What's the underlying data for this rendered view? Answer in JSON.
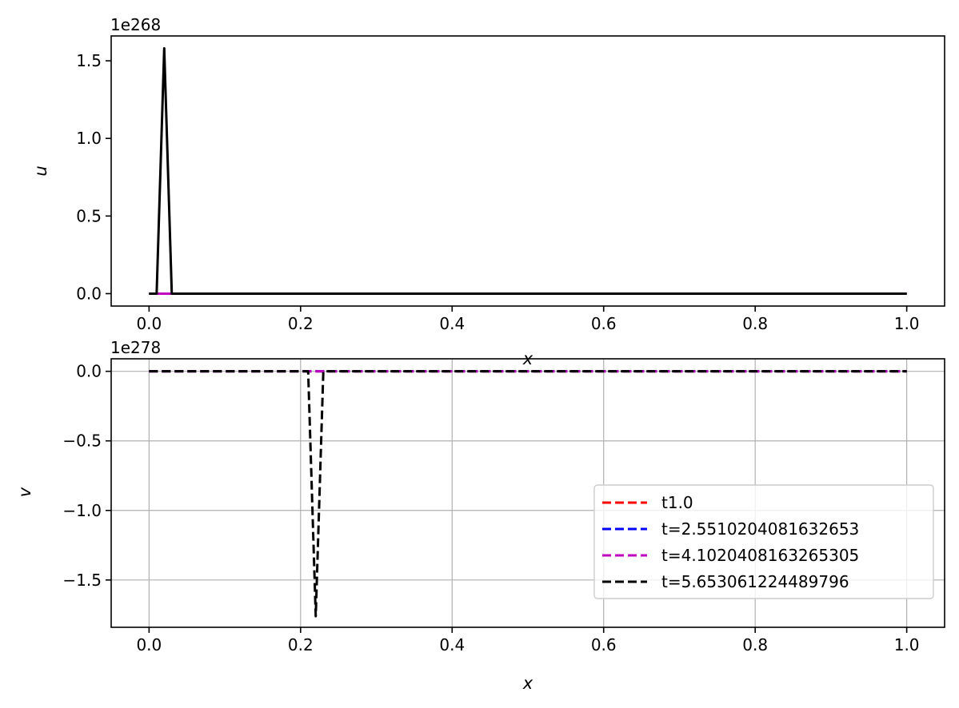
{
  "chart_data": [
    {
      "type": "line",
      "xlabel": "x",
      "ylabel": "u",
      "offset_text": "1e268",
      "xlim": [
        -0.05,
        1.05
      ],
      "ylim": [
        -0.08,
        1.66
      ],
      "grid": false,
      "x_ticks": [
        0.0,
        0.2,
        0.4,
        0.6,
        0.8,
        1.0
      ],
      "x_tick_labels": [
        "0.0",
        "0.2",
        "0.4",
        "0.6",
        "0.8",
        "1.0"
      ],
      "y_ticks": [
        0.0,
        0.5,
        1.0,
        1.5
      ],
      "y_tick_labels": [
        "0.0",
        "0.5",
        "1.0",
        "1.5"
      ],
      "series": [
        {
          "color": "#ff0000",
          "dash": "solid",
          "x": [
            0.0,
            1.0
          ],
          "y": [
            0.0,
            0.0
          ]
        },
        {
          "color": "#0000ff",
          "dash": "solid",
          "x": [
            0.0,
            0.01,
            0.02,
            0.03,
            1.0
          ],
          "y": [
            0.0,
            0.0,
            0.0,
            0.0,
            0.0
          ]
        },
        {
          "color": "#bf00bf",
          "dash": "solid",
          "x": [
            0.0,
            1.0
          ],
          "y": [
            0.0,
            0.0
          ]
        },
        {
          "color": "#000000",
          "dash": "solid",
          "x": [
            0.0,
            0.01,
            0.02,
            0.03,
            0.04,
            1.0
          ],
          "y": [
            0.0,
            0.0,
            1.58,
            0.0,
            0.0,
            0.0
          ]
        }
      ]
    },
    {
      "type": "line",
      "xlabel": "x",
      "ylabel": "v",
      "offset_text": "1e278",
      "xlim": [
        -0.05,
        1.05
      ],
      "ylim": [
        -1.84,
        0.09
      ],
      "grid": true,
      "legend_position": "lower-right",
      "x_ticks": [
        0.0,
        0.2,
        0.4,
        0.6,
        0.8,
        1.0
      ],
      "x_tick_labels": [
        "0.0",
        "0.2",
        "0.4",
        "0.6",
        "0.8",
        "1.0"
      ],
      "y_ticks": [
        0.0,
        -0.5,
        -1.0,
        -1.5
      ],
      "y_tick_labels": [
        "0.0",
        "−0.5",
        "−1.0",
        "−1.5"
      ],
      "series": [
        {
          "name": "t1.0",
          "color": "#ff0000",
          "dash": "dashed",
          "x": [
            0.0,
            1.0
          ],
          "y": [
            0.0,
            0.0
          ]
        },
        {
          "name": "t=2.5510204081632653",
          "color": "#0000ff",
          "dash": "dashed",
          "x": [
            0.0,
            0.21,
            0.22,
            0.23,
            1.0
          ],
          "y": [
            0.0,
            0.0,
            0.0,
            0.0,
            0.0
          ]
        },
        {
          "name": "t=4.1020408163265305",
          "color": "#bf00bf",
          "dash": "dashed",
          "x": [
            0.0,
            1.0
          ],
          "y": [
            0.0,
            0.0
          ]
        },
        {
          "name": "t=5.653061224489796",
          "color": "#000000",
          "dash": "dashed",
          "x": [
            0.0,
            0.21,
            0.22,
            0.23,
            0.24,
            1.0
          ],
          "y": [
            0.0,
            0.0,
            -1.76,
            0.0,
            0.0,
            0.0
          ]
        }
      ]
    }
  ]
}
